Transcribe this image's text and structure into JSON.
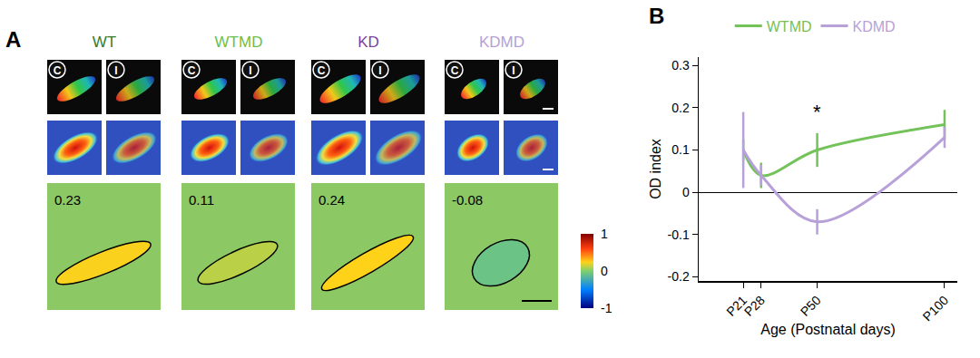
{
  "panel_a": {
    "label": "A",
    "eye_labels": [
      "C",
      "I"
    ],
    "groups": [
      {
        "name": "WT",
        "color": "#2e7d32",
        "od": 0.23
      },
      {
        "name": "WTMD",
        "color": "#6cc04a",
        "od": 0.11
      },
      {
        "name": "KD",
        "color": "#7b3fa0",
        "od": 0.24
      },
      {
        "name": "KDMD",
        "color": "#b7a0d8",
        "od": -0.08
      }
    ],
    "colorbar": {
      "range": [
        -1,
        1
      ],
      "ticks": [
        1,
        0,
        -1
      ]
    }
  },
  "chart_data": {
    "type": "line",
    "title": "B",
    "x_label": "Age (Postnatal days)",
    "y_label": "OD index",
    "x": [
      21,
      28,
      50,
      100
    ],
    "xlim": [
      3.5,
      105
    ],
    "xticks": [
      {
        "value": 21,
        "label": "P21"
      },
      {
        "value": 28,
        "label": "P28"
      },
      {
        "value": 50,
        "label": "P50"
      },
      {
        "value": 100,
        "label": "P100"
      }
    ],
    "ylim": [
      -0.21,
      0.32
    ],
    "yticks": [
      -0.2,
      -0.1,
      0,
      0.1,
      0.2,
      0.3
    ],
    "grid": false,
    "legend": "top",
    "series": [
      {
        "name": "WTMD",
        "color": "#74c25a",
        "line_style": "smooth",
        "values": [
          0.1,
          0.04,
          0.1,
          0.16
        ],
        "errors": [
          0.025,
          0.03,
          0.04,
          0.035
        ]
      },
      {
        "name": "KDMD",
        "color": "#b8a0d8",
        "line_style": "smooth",
        "values": [
          0.1,
          0.04,
          -0.07,
          0.13
        ],
        "errors": [
          0.09,
          0.025,
          0.03,
          0.025
        ]
      }
    ],
    "annotations": [
      {
        "text": "*",
        "x": 50,
        "y": 0.16
      }
    ]
  }
}
